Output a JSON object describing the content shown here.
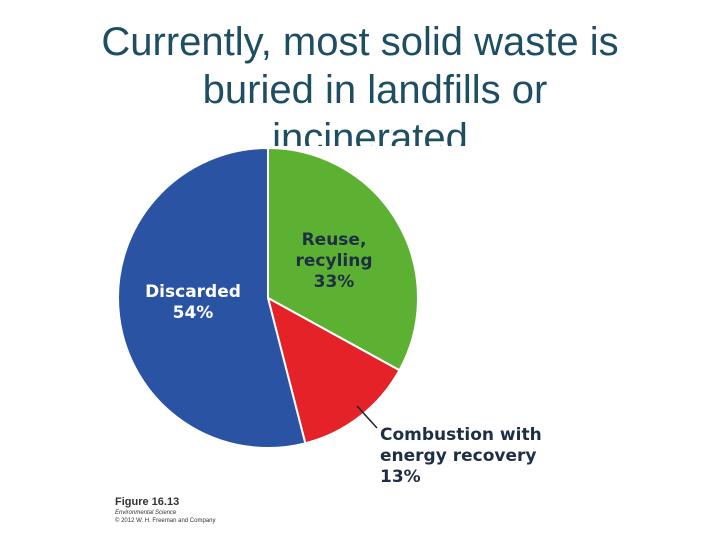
{
  "title": {
    "line1": "Currently, most solid waste is",
    "line2": "buried in landfills or",
    "line3": "incinerated"
  },
  "chart_data": {
    "type": "pie",
    "slices": [
      {
        "name": "Reuse, recyling",
        "lines": [
          "Reuse,",
          "recyling",
          "33%"
        ],
        "value": 33,
        "color": "#5cb133",
        "label_color": "#1e2e44"
      },
      {
        "name": "Combustion with energy recovery",
        "lines": [
          "Combustion with",
          "energy recovery",
          "13%"
        ],
        "value": 13,
        "color": "#e52227",
        "label_color": "#1e2e44"
      },
      {
        "name": "Discarded",
        "lines": [
          "Discarded",
          "54%"
        ],
        "value": 54,
        "color": "#2b53a4",
        "label_color": "#ffffff"
      }
    ]
  },
  "caption": {
    "figure": "Figure 16.13",
    "source": "Environmental Science",
    "copyright": "© 2012 W. H. Freeman and Company"
  }
}
